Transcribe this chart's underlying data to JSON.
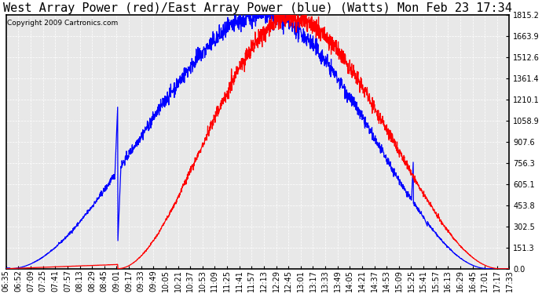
{
  "title": "West Array Power (red)/East Array Power (blue) (Watts) Mon Feb 23 17:34",
  "copyright": "Copyright 2009 Cartronics.com",
  "background_color": "#ffffff",
  "plot_bg_color": "#e8e8e8",
  "grid_color": "#ffffff",
  "ylim": [
    0.0,
    1815.2
  ],
  "yticks": [
    0.0,
    151.3,
    302.5,
    453.8,
    605.1,
    756.3,
    907.6,
    1058.9,
    1210.1,
    1361.4,
    1512.6,
    1663.9,
    1815.2
  ],
  "x_labels": [
    "06:35",
    "06:52",
    "07:09",
    "07:25",
    "07:41",
    "07:57",
    "08:13",
    "08:29",
    "08:45",
    "09:01",
    "09:17",
    "09:33",
    "09:49",
    "10:05",
    "10:21",
    "10:37",
    "10:53",
    "11:09",
    "11:25",
    "11:41",
    "11:57",
    "12:13",
    "12:29",
    "12:45",
    "13:01",
    "13:17",
    "13:33",
    "13:49",
    "14:05",
    "14:21",
    "14:37",
    "14:53",
    "15:09",
    "15:25",
    "15:41",
    "15:57",
    "16:13",
    "16:29",
    "16:45",
    "17:01",
    "17:17",
    "17:33"
  ],
  "red_color": "#ff0000",
  "blue_color": "#0000ff",
  "title_fontsize": 11,
  "tick_fontsize": 7,
  "copyright_fontsize": 6.5
}
